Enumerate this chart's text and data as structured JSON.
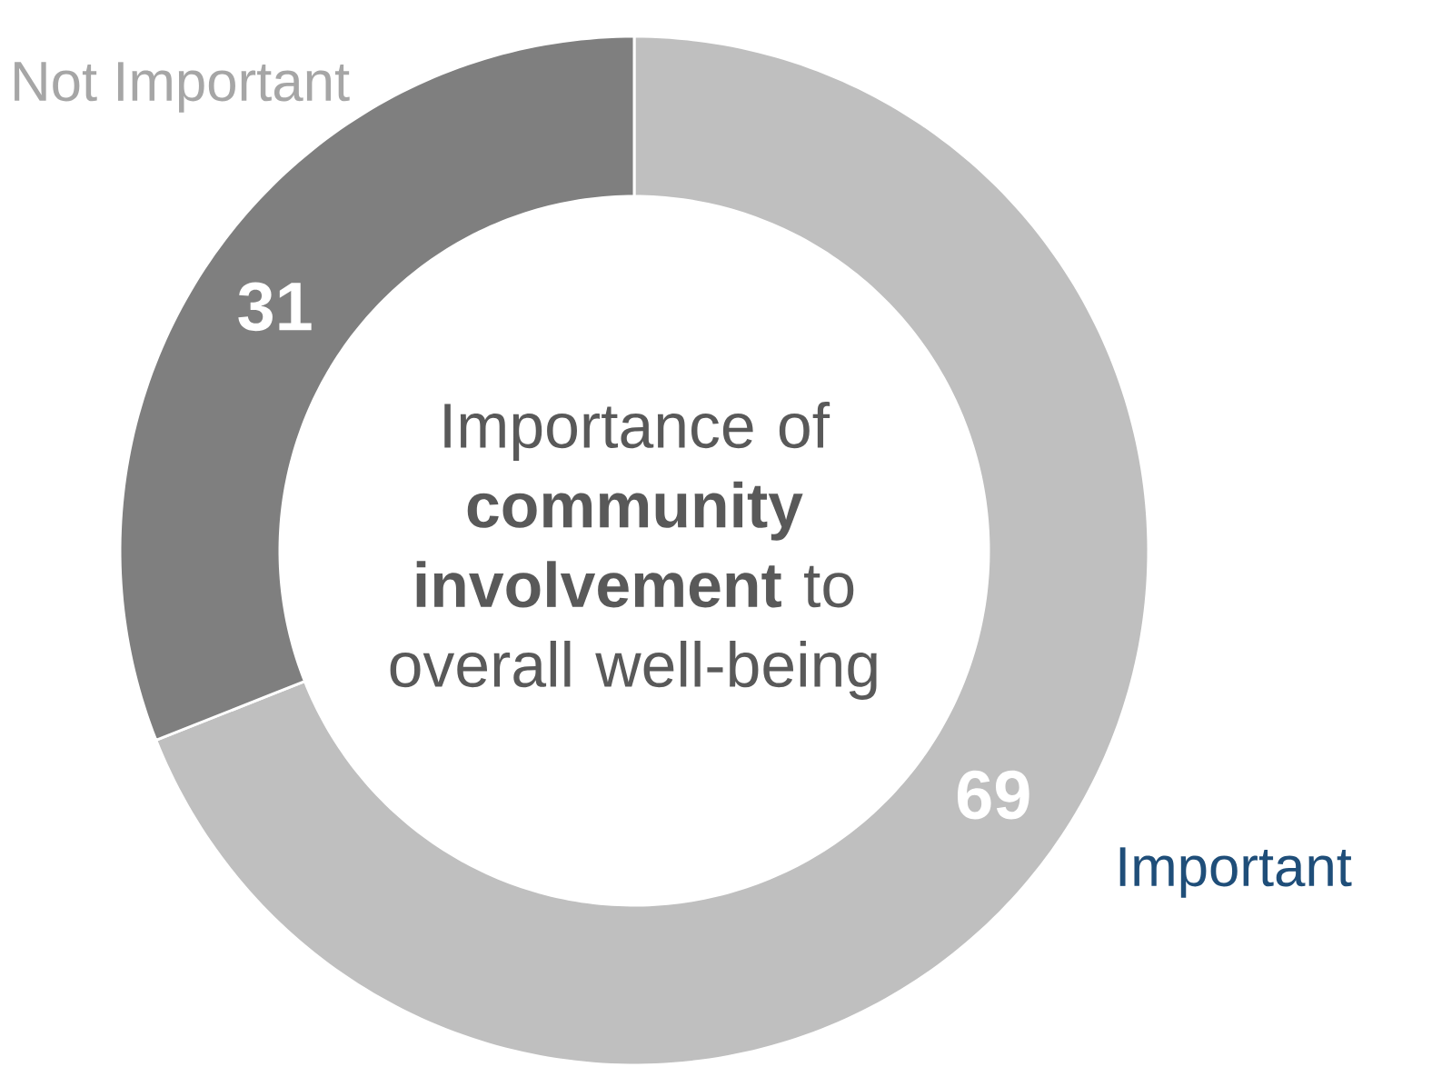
{
  "chart_data": {
    "type": "donut",
    "title": "Importance of **community involvement** to overall well-being",
    "categories": [
      "Important",
      "Not Important"
    ],
    "values": [
      69,
      31
    ],
    "colors": [
      "#bfbfbf",
      "#7f7f7f"
    ],
    "data_labels": true
  }
}
